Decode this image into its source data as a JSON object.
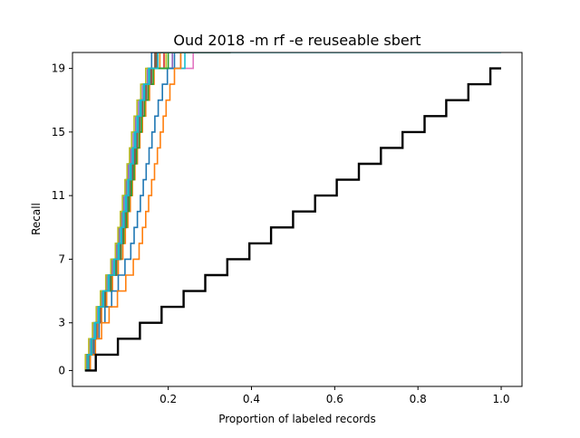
{
  "chart_data": {
    "type": "line",
    "title": "Oud 2018 -m rf -e reuseable sbert",
    "xlabel": "Proportion of labeled records",
    "ylabel": "Recall",
    "xlim": [
      -0.03,
      1.05
    ],
    "ylim": [
      -1,
      20
    ],
    "x_ticks": [
      {
        "value": 0.2,
        "label": "0.2"
      },
      {
        "value": 0.4,
        "label": "0.4"
      },
      {
        "value": 0.6,
        "label": "0.6"
      },
      {
        "value": 0.8,
        "label": "0.8"
      },
      {
        "value": 1.0,
        "label": "1.0"
      }
    ],
    "y_ticks": [
      0,
      3,
      7,
      11,
      15,
      19
    ],
    "grid": false,
    "legend": "none",
    "series": [
      {
        "color": "#1f77b4",
        "x_at_step": [
          0.008,
          0.017,
          0.025,
          0.034,
          0.045,
          0.06,
          0.074,
          0.086,
          0.092,
          0.098,
          0.103,
          0.108,
          0.113,
          0.119,
          0.124,
          0.13,
          0.135,
          0.142,
          0.15,
          0.16
        ],
        "x_end": 0.35
      },
      {
        "color": "#ff7f0e",
        "x_at_step": [
          0.011,
          0.02,
          0.03,
          0.04,
          0.052,
          0.066,
          0.08,
          0.091,
          0.097,
          0.103,
          0.109,
          0.114,
          0.12,
          0.126,
          0.132,
          0.138,
          0.146,
          0.155,
          0.166,
          0.18
        ],
        "x_end": 0.35
      },
      {
        "color": "#2ca02c",
        "x_at_step": [
          0.003,
          0.012,
          0.021,
          0.03,
          0.04,
          0.053,
          0.066,
          0.077,
          0.083,
          0.089,
          0.095,
          0.1,
          0.106,
          0.112,
          0.118,
          0.124,
          0.131,
          0.14,
          0.152,
          0.17
        ],
        "x_end": 0.35
      },
      {
        "color": "#d62728",
        "x_at_step": [
          0.006,
          0.015,
          0.024,
          0.033,
          0.044,
          0.058,
          0.071,
          0.082,
          0.088,
          0.094,
          0.099,
          0.105,
          0.11,
          0.116,
          0.121,
          0.127,
          0.134,
          0.143,
          0.155,
          0.19
        ],
        "x_end": 0.35
      },
      {
        "color": "#9467bd",
        "x_at_step": [
          0.002,
          0.01,
          0.019,
          0.028,
          0.038,
          0.051,
          0.064,
          0.075,
          0.081,
          0.087,
          0.093,
          0.098,
          0.104,
          0.11,
          0.116,
          0.122,
          0.129,
          0.138,
          0.15,
          0.21
        ],
        "x_end": 0.35
      },
      {
        "color": "#8c564b",
        "x_at_step": [
          0.01,
          0.019,
          0.028,
          0.037,
          0.049,
          0.063,
          0.076,
          0.087,
          0.093,
          0.099,
          0.104,
          0.11,
          0.115,
          0.121,
          0.126,
          0.132,
          0.139,
          0.148,
          0.16,
          0.172
        ],
        "x_end": 0.35
      },
      {
        "color": "#e377c2",
        "x_at_step": [
          0.004,
          0.013,
          0.022,
          0.031,
          0.042,
          0.055,
          0.068,
          0.079,
          0.085,
          0.091,
          0.096,
          0.102,
          0.107,
          0.113,
          0.118,
          0.124,
          0.131,
          0.14,
          0.152,
          0.26
        ],
        "x_end": 0.35
      },
      {
        "color": "#7f7f7f",
        "x_at_step": [
          0.009,
          0.018,
          0.027,
          0.036,
          0.047,
          0.061,
          0.074,
          0.085,
          0.091,
          0.097,
          0.102,
          0.108,
          0.113,
          0.119,
          0.124,
          0.13,
          0.137,
          0.146,
          0.158,
          0.23
        ],
        "x_end": 0.35
      },
      {
        "color": "#bcbd22",
        "x_at_step": [
          0.001,
          0.009,
          0.018,
          0.027,
          0.037,
          0.05,
          0.062,
          0.073,
          0.079,
          0.085,
          0.09,
          0.096,
          0.101,
          0.107,
          0.112,
          0.118,
          0.125,
          0.134,
          0.146,
          0.195
        ],
        "x_end": 0.35
      },
      {
        "color": "#17becf",
        "x_at_step": [
          0.005,
          0.014,
          0.023,
          0.032,
          0.043,
          0.056,
          0.069,
          0.08,
          0.086,
          0.092,
          0.097,
          0.103,
          0.108,
          0.114,
          0.119,
          0.125,
          0.132,
          0.141,
          0.153,
          0.24
        ],
        "x_end": 0.35
      },
      {
        "color": "#1f77b4",
        "x_at_step": [
          0.012,
          0.022,
          0.034,
          0.048,
          0.064,
          0.08,
          0.096,
          0.11,
          0.118,
          0.126,
          0.133,
          0.14,
          0.147,
          0.154,
          0.161,
          0.168,
          0.176,
          0.186,
          0.198,
          0.215
        ],
        "x_end": 0.35
      },
      {
        "color": "#ff7f0e",
        "x_at_step": [
          0.013,
          0.025,
          0.04,
          0.058,
          0.078,
          0.098,
          0.116,
          0.13,
          0.138,
          0.146,
          0.153,
          0.16,
          0.167,
          0.174,
          0.181,
          0.188,
          0.195,
          0.204,
          0.215,
          0.23
        ],
        "x_end": 0.35
      },
      {
        "color": "#2ca02c",
        "x_at_step": [
          0.007,
          0.016,
          0.026,
          0.036,
          0.048,
          0.062,
          0.075,
          0.086,
          0.093,
          0.1,
          0.106,
          0.112,
          0.118,
          0.124,
          0.13,
          0.136,
          0.143,
          0.152,
          0.164,
          0.2
        ],
        "x_end": 0.35
      },
      {
        "color": "#8c564b",
        "x_at_step": [
          0.006,
          0.016,
          0.026,
          0.036,
          0.047,
          0.06,
          0.073,
          0.084,
          0.09,
          0.096,
          0.102,
          0.107,
          0.113,
          0.119,
          0.124,
          0.13,
          0.137,
          0.146,
          0.158,
          0.168
        ],
        "x_end": 0.35
      },
      {
        "color": "#17becf",
        "x_at_step": [
          0.007,
          0.016,
          0.025,
          0.034,
          0.045,
          0.058,
          0.071,
          0.082,
          0.088,
          0.094,
          0.1,
          0.105,
          0.111,
          0.116,
          0.122,
          0.128,
          0.135,
          0.143,
          0.155,
          0.175
        ],
        "x_end": 1.0
      },
      {
        "color": "#000000",
        "x_at_step": [
          0.026,
          0.079,
          0.132,
          0.184,
          0.237,
          0.289,
          0.342,
          0.395,
          0.447,
          0.5,
          0.553,
          0.605,
          0.658,
          0.711,
          0.763,
          0.816,
          0.868,
          0.921,
          0.974
        ],
        "x_end": 1.0,
        "stroke": 2.4
      }
    ]
  }
}
